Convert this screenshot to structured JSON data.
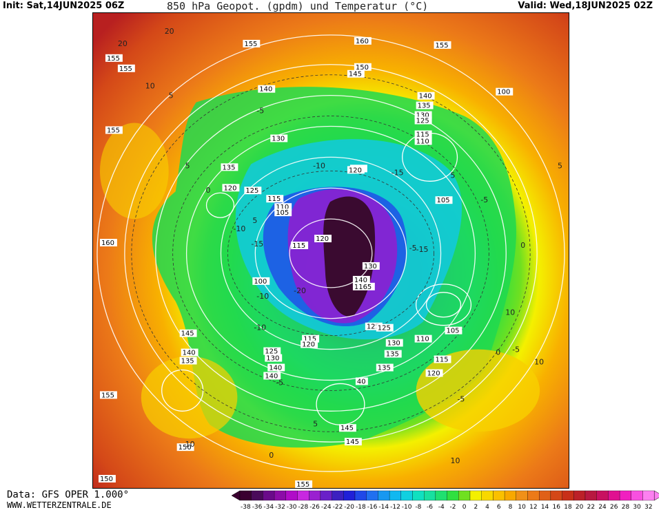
{
  "header": {
    "init": "Init: Sat,14JUN2025 06Z",
    "title": "850 hPa Geopot. (gpdm) und Temperatur (°C)",
    "valid": "Valid: Wed,18JUN2025 02Z"
  },
  "footer": {
    "source": "Data: GFS OPER 1.000°",
    "site": "WWW.WETTERZENTRALE.DE"
  },
  "colorbar": {
    "labels": [
      "-38",
      "-36",
      "-34",
      "-32",
      "-30",
      "-28",
      "-26",
      "-24",
      "-22",
      "-20",
      "-18",
      "-16",
      "-14",
      "-12",
      "-10",
      "-8",
      "-6",
      "-4",
      "-2",
      "0",
      "2",
      "4",
      "6",
      "8",
      "10",
      "12",
      "14",
      "16",
      "18",
      "20",
      "22",
      "24",
      "26",
      "28",
      "30",
      "32"
    ],
    "colors": [
      "#3a0030",
      "#4a0a5a",
      "#6a0a8a",
      "#8c0ca8",
      "#b00cc8",
      "#c828e0",
      "#9a20d0",
      "#6a20c8",
      "#3c20c0",
      "#2020d8",
      "#2048e8",
      "#2070f0",
      "#1898f0",
      "#10b8f0",
      "#10d0e0",
      "#10e0c0",
      "#18e0a0",
      "#20e070",
      "#30e040",
      "#70e020",
      "#f4f000",
      "#f8d800",
      "#fac000",
      "#f8a800",
      "#f09018",
      "#ec7a18",
      "#e06018",
      "#d44818",
      "#c83018",
      "#bc2028",
      "#b81840",
      "#c81060",
      "#e01090",
      "#f020c0",
      "#f850e0",
      "#fc80f0"
    ]
  },
  "map": {
    "geopotential_labels": [
      "155",
      "160",
      "155",
      "150",
      "145",
      "140",
      "140",
      "135",
      "130",
      "125",
      "115",
      "110",
      "155",
      "130",
      "120",
      "135",
      "120",
      "125",
      "115",
      "110",
      "105",
      "120",
      "115",
      "105",
      "160",
      "100",
      "120",
      "130",
      "140",
      "1165",
      "125",
      "125",
      "115",
      "120",
      "130",
      "125",
      "130",
      "135",
      "140",
      "135",
      "140",
      "105",
      "110",
      "115",
      "120",
      "145",
      "140",
      "135",
      "155",
      "40",
      "145",
      "150",
      "145",
      "150",
      "155",
      "100",
      "155",
      "155"
    ],
    "temperature_labels": [
      "20",
      "20",
      "10",
      "5",
      "-5",
      "5",
      "-10",
      "-15",
      "0",
      "-10",
      "-15",
      "-5",
      "5",
      "-10",
      "-20",
      "-10",
      "-5",
      "0",
      "5",
      "10",
      "10",
      "5",
      "0",
      "-5",
      "10",
      "-5",
      "5",
      "0",
      "-5",
      "-15",
      "10"
    ],
    "palette": {
      "hot": "#c83a18",
      "orange": "#ec7a18",
      "yellow": "#f8d000",
      "green": "#20d850",
      "cyan": "#10c8e8",
      "blue": "#2050e8",
      "violet": "#8c20d0",
      "darkpurple": "#3a0a30"
    }
  }
}
